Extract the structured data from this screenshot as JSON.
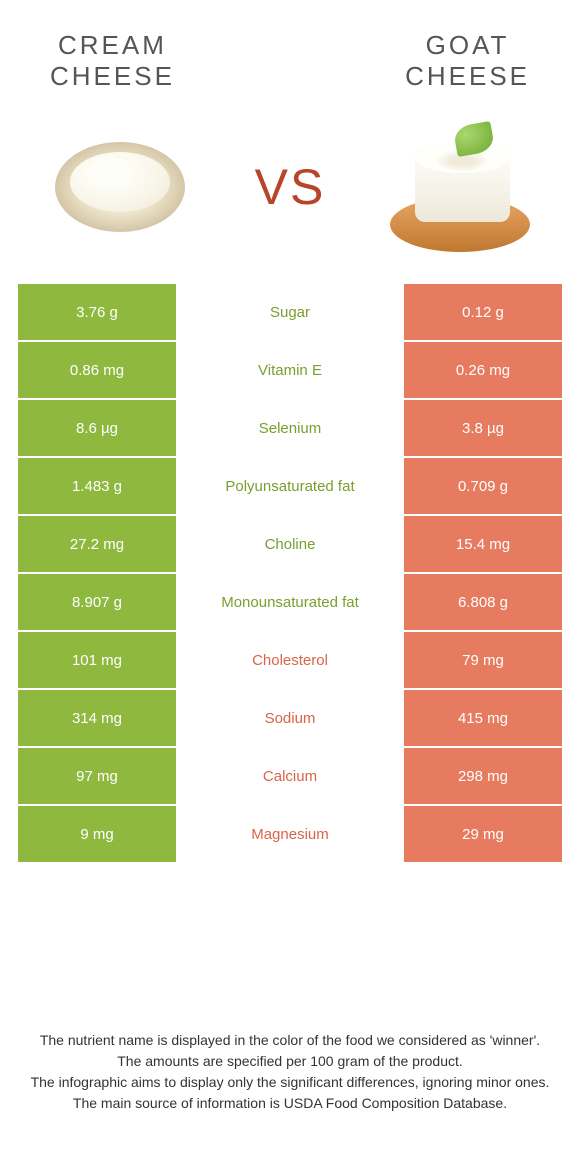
{
  "colors": {
    "green": "#8fb83f",
    "orange": "#e77b5f",
    "label_green": "#7a9f2e",
    "label_orange": "#d96548",
    "vs": "#b8442a",
    "title": "#555555"
  },
  "left_food": {
    "title": "CREAM\nCHEESE"
  },
  "right_food": {
    "title": "GOAT\nCHEESE"
  },
  "vs_text": "VS",
  "rows": [
    {
      "left": "3.76 g",
      "label": "Sugar",
      "right": "0.12 g",
      "winner": "left"
    },
    {
      "left": "0.86 mg",
      "label": "Vitamin E",
      "right": "0.26 mg",
      "winner": "left"
    },
    {
      "left": "8.6 µg",
      "label": "Selenium",
      "right": "3.8 µg",
      "winner": "left"
    },
    {
      "left": "1.483 g",
      "label": "Polyunsaturated fat",
      "right": "0.709 g",
      "winner": "left"
    },
    {
      "left": "27.2 mg",
      "label": "Choline",
      "right": "15.4 mg",
      "winner": "left"
    },
    {
      "left": "8.907 g",
      "label": "Monounsaturated fat",
      "right": "6.808 g",
      "winner": "left"
    },
    {
      "left": "101 mg",
      "label": "Cholesterol",
      "right": "79 mg",
      "winner": "right"
    },
    {
      "left": "314 mg",
      "label": "Sodium",
      "right": "415 mg",
      "winner": "right"
    },
    {
      "left": "97 mg",
      "label": "Calcium",
      "right": "298 mg",
      "winner": "right"
    },
    {
      "left": "9 mg",
      "label": "Magnesium",
      "right": "29 mg",
      "winner": "right"
    }
  ],
  "footer": {
    "line1": "The nutrient name is displayed in the color of the food we considered as 'winner'.",
    "line2": "The amounts are specified per 100 gram of the product.",
    "line3": "The infographic aims to display only the significant differences, ignoring minor ones.",
    "line4": "The main source of information is USDA Food Composition Database."
  }
}
